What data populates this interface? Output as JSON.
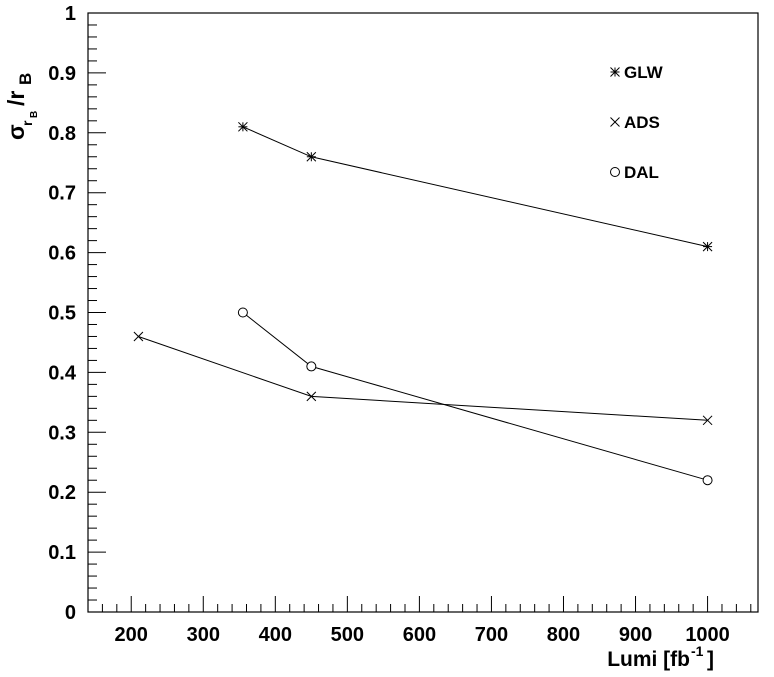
{
  "chart_data": {
    "type": "line",
    "title": "",
    "xlabel": "Lumi [fb-1]",
    "ylabel": "σ_rB/r_B",
    "xlim": [
      140,
      1070
    ],
    "ylim": [
      0,
      1
    ],
    "x_ticks": [
      200,
      300,
      400,
      500,
      600,
      700,
      800,
      900,
      1000
    ],
    "x_tick_labels": [
      "200",
      "300",
      "400",
      "500",
      "600",
      "700",
      "800",
      "900",
      "1000"
    ],
    "y_ticks": [
      0,
      0.1,
      0.2,
      0.3,
      0.4,
      0.5,
      0.6,
      0.7,
      0.8,
      0.9,
      1
    ],
    "y_tick_labels": [
      "0",
      "0.1",
      "0.2",
      "0.3",
      "0.4",
      "0.5",
      "0.6",
      "0.7",
      "0.8",
      "0.9",
      "1"
    ],
    "grid": false,
    "legend_position": "top-right",
    "series": [
      {
        "name": "GLW",
        "marker": "asterisk",
        "x": [
          355,
          450,
          1000
        ],
        "y": [
          0.81,
          0.76,
          0.61
        ]
      },
      {
        "name": "ADS",
        "marker": "cross",
        "x": [
          210,
          450,
          1000
        ],
        "y": [
          0.46,
          0.36,
          0.32
        ]
      },
      {
        "name": "DAL",
        "marker": "circle",
        "x": [
          355,
          450,
          1000
        ],
        "y": [
          0.5,
          0.41,
          0.22
        ]
      }
    ],
    "axis_title": {
      "x_main": "Lumi [fb",
      "x_sup": "-1",
      "x_close": "]",
      "y_sigma": "σ",
      "y_sub_r": "r",
      "y_subsub": "B",
      "y_slash_r": "/r",
      "y_B": "B"
    },
    "colors": {
      "axis": "#000000",
      "line": "#000000",
      "background": "#ffffff"
    }
  }
}
